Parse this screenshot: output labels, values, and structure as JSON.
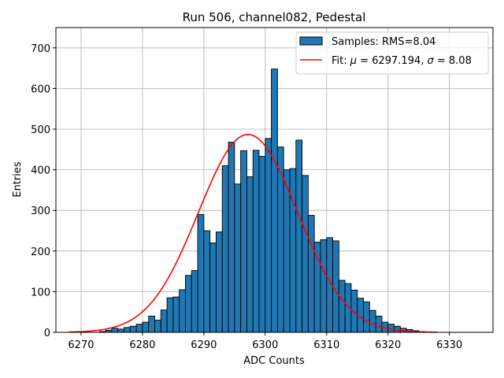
{
  "chart_data": {
    "type": "histogram",
    "title": "Run 506, channel082, Pedestal",
    "xlabel": "ADC Counts",
    "ylabel": "Entries",
    "xlim": [
      6265.9,
      6337.1
    ],
    "ylim": [
      0,
      750
    ],
    "xticks": [
      6270,
      6280,
      6290,
      6300,
      6310,
      6320,
      6330
    ],
    "yticks": [
      0,
      100,
      200,
      300,
      400,
      500,
      600,
      700
    ],
    "grid": true,
    "legend_position": "top-right",
    "bin_start": 6273,
    "bin_width": 1,
    "bin_counts": [
      2,
      5,
      10,
      8,
      12,
      15,
      20,
      25,
      40,
      30,
      55,
      85,
      87,
      105,
      140,
      152,
      290,
      250,
      220,
      247,
      410,
      468,
      365,
      447,
      383,
      448,
      433,
      477,
      648,
      456,
      400,
      403,
      473,
      386,
      288,
      222,
      228,
      233,
      225,
      128,
      120,
      104,
      84,
      75,
      54,
      40,
      25,
      20,
      15,
      10,
      7,
      4,
      2,
      1
    ],
    "series": [
      {
        "name": "Samples: RMS=8.04",
        "kind": "histogram",
        "color": "#1f77b4"
      },
      {
        "name": "Fit: μ = 6297.194, σ = 8.08",
        "kind": "line",
        "color": "#ff0000",
        "mu": 6297.194,
        "sigma": 8.08,
        "peak": 487,
        "x_range": [
          6268,
          6328
        ]
      }
    ],
    "legend": {
      "samples_prefix": "Samples: RMS=8.04",
      "fit_prefix": "Fit: ",
      "fit_mu_symbol": "μ",
      "fit_mu_value": " = 6297.194, ",
      "fit_sigma_symbol": "σ",
      "fit_sigma_value": " = 8.08"
    }
  }
}
